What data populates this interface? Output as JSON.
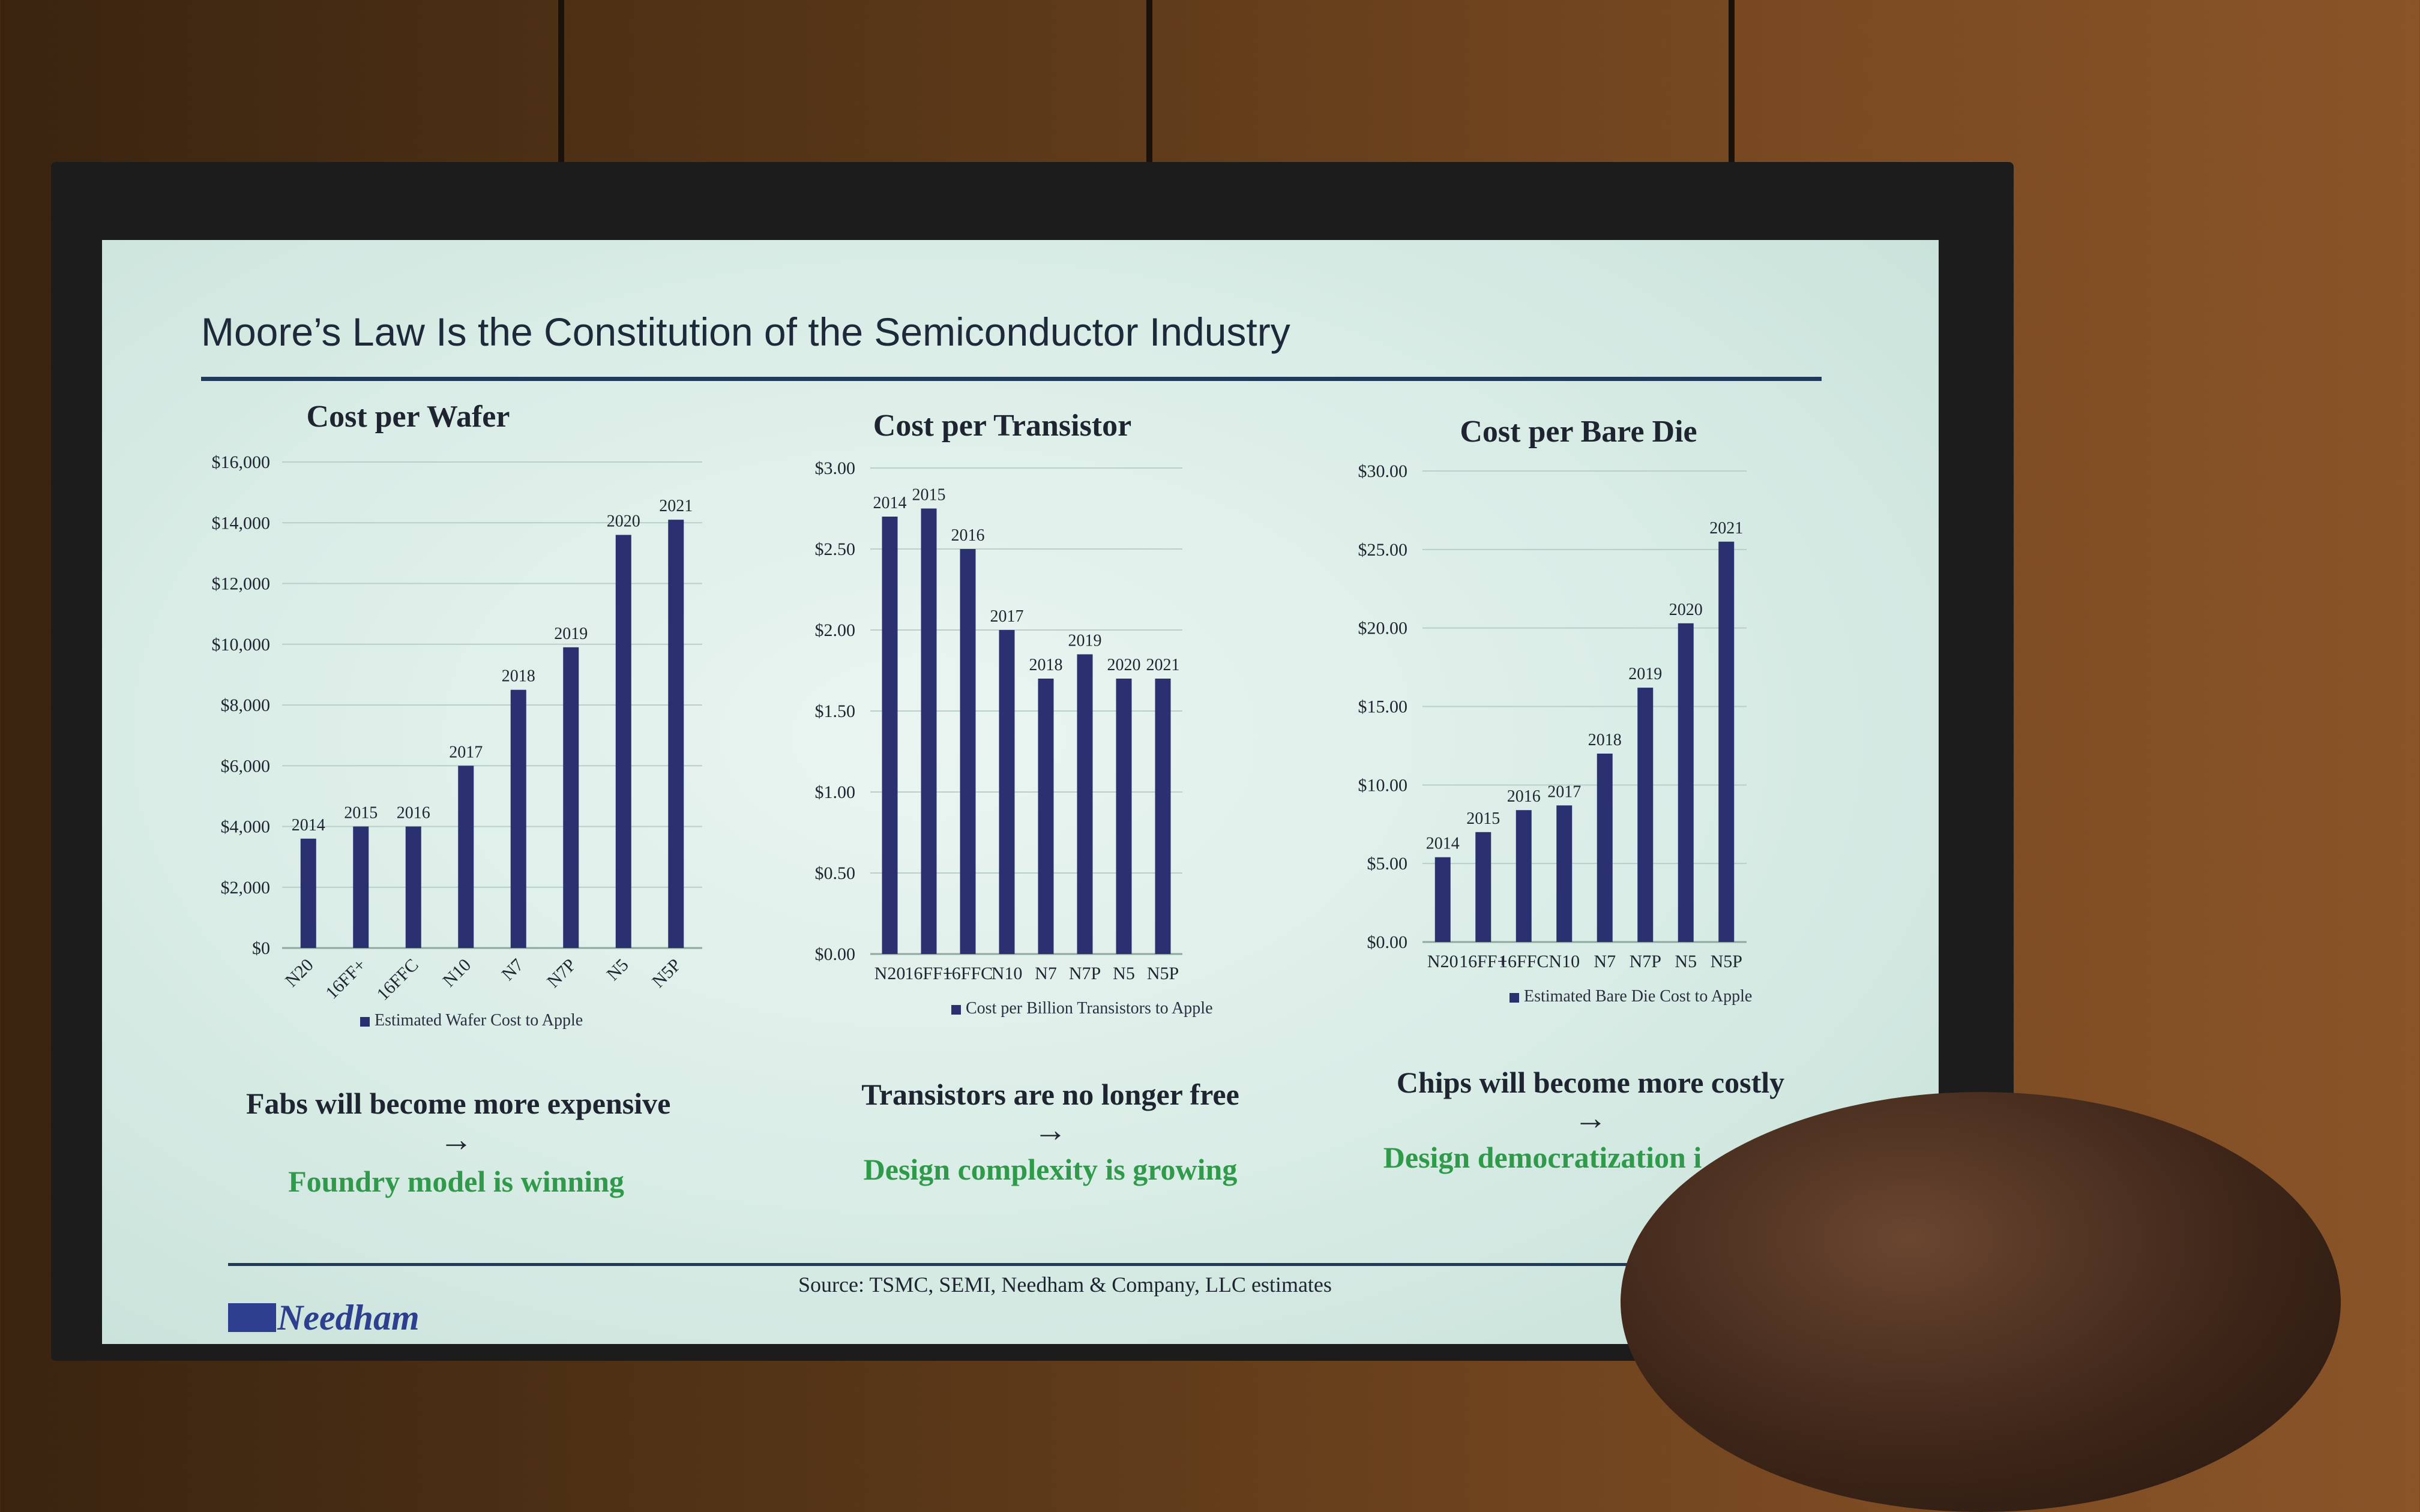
{
  "slide": {
    "title": "Moore’s Law Is the Constitution of the Semiconductor Industry",
    "source": "Source: TSMC, SEMI, Needham & Company, LLC estimates",
    "logo_text": "Needham"
  },
  "takeaways": [
    {
      "statement": "Fabs will become more expensive",
      "arrow": "→",
      "conclusion": "Foundry model is winning"
    },
    {
      "statement": "Transistors are no longer free",
      "arrow": "→",
      "conclusion": "Design complexity is growing"
    },
    {
      "statement": "Chips will become more costly",
      "arrow": "→",
      "conclusion": "Design democratization i"
    }
  ],
  "colors": {
    "bar": "#2b3170",
    "grid": "#b9cfc8",
    "accent_green": "#2f9a4a",
    "rule": "#1f3a5a"
  },
  "chart_data": [
    {
      "type": "bar",
      "title": "Cost per Wafer",
      "categories": [
        "N20",
        "16FF+",
        "16FFC",
        "N10",
        "N7",
        "N7P",
        "N5",
        "N5P"
      ],
      "data_labels": [
        "2014",
        "2015",
        "2016",
        "2017",
        "2018",
        "2019",
        "2020",
        "2021"
      ],
      "series": [
        {
          "name": "Estimated Wafer Cost to Apple",
          "values": [
            3600,
            4000,
            4000,
            6000,
            8500,
            9900,
            13600,
            14100
          ]
        }
      ],
      "ylim": [
        0,
        16000
      ],
      "yticks": [
        0,
        2000,
        4000,
        6000,
        8000,
        10000,
        12000,
        14000,
        16000
      ],
      "ytick_labels": [
        "$0",
        "$2,000",
        "$4,000",
        "$6,000",
        "$8,000",
        "$10,000",
        "$12,000",
        "$14,000",
        "$16,000"
      ],
      "grid": true,
      "legend": "bottom",
      "rotated_categories": true
    },
    {
      "type": "bar",
      "title": "Cost per Transistor",
      "categories": [
        "N20",
        "16FF+",
        "16FFC",
        "N10",
        "N7",
        "N7P",
        "N5",
        "N5P"
      ],
      "data_labels": [
        "2014",
        "2015",
        "2016",
        "2017",
        "2018",
        "2019",
        "2020",
        "2021"
      ],
      "series": [
        {
          "name": "Cost per Billion Transistors to Apple",
          "values": [
            2.7,
            2.75,
            2.5,
            2.0,
            1.7,
            1.85,
            1.7,
            1.7
          ]
        }
      ],
      "ylim": [
        0,
        3
      ],
      "yticks": [
        0,
        0.5,
        1,
        1.5,
        2,
        2.5,
        3
      ],
      "ytick_labels": [
        "$0.00",
        "$0.50",
        "$1.00",
        "$1.50",
        "$2.00",
        "$2.50",
        "$3.00"
      ],
      "grid": true,
      "legend": "bottom",
      "rotated_categories": false
    },
    {
      "type": "bar",
      "title": "Cost per Bare Die",
      "categories": [
        "N20",
        "16FF+",
        "16FFC",
        "N10",
        "N7",
        "N7P",
        "N5",
        "N5P"
      ],
      "data_labels": [
        "2014",
        "2015",
        "2016",
        "2017",
        "2018",
        "2019",
        "2020",
        "2021"
      ],
      "series": [
        {
          "name": "Estimated Bare Die Cost to Apple",
          "values": [
            5.4,
            7.0,
            8.4,
            8.7,
            12.0,
            16.2,
            20.3,
            25.5
          ]
        }
      ],
      "ylim": [
        0,
        30
      ],
      "yticks": [
        0,
        5,
        10,
        15,
        20,
        25,
        30
      ],
      "ytick_labels": [
        "$0.00",
        "$5.00",
        "$10.00",
        "$15.00",
        "$20.00",
        "$25.00",
        "$30.00"
      ],
      "grid": true,
      "legend": "bottom",
      "rotated_categories": false
    }
  ]
}
